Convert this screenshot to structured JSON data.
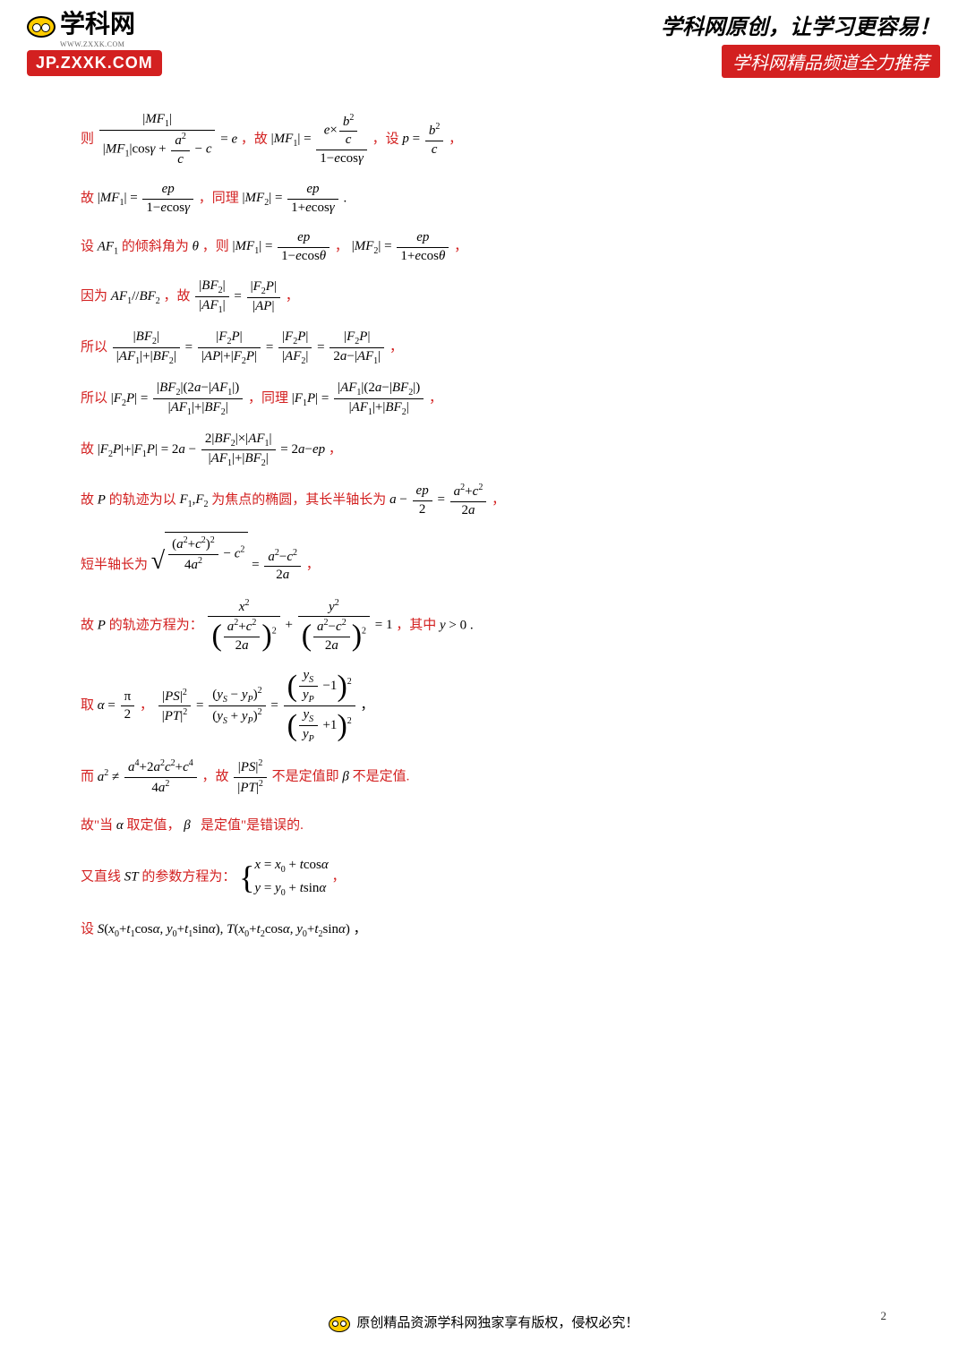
{
  "header": {
    "logo_text": "学科网",
    "logo_url": "WWW.ZXXK.COM",
    "logo_badge": "JP.ZXXK.COM",
    "slogan": "学科网原创，让学习更容易！",
    "promo": "学科网精品频道全力推荐"
  },
  "lines": {
    "l1a": "则",
    "l1b": "，故",
    "l1c": "，设",
    "l1d": "，",
    "l2a": "故",
    "l2b": "，同理",
    "l2c": ".",
    "l3a": "设",
    "l3b": "的倾斜角为",
    "l3c": "，则",
    "l3d": "，",
    "l3e": "，",
    "l4a": "因为",
    "l4b": "，故",
    "l4c": "，",
    "l5a": "所以",
    "l5b": "，",
    "l6a": "所以",
    "l6b": "，同理",
    "l6c": "，",
    "l7a": "故",
    "l7b": "，",
    "l8a": "故",
    "l8b": "的轨迹为以",
    "l8c": "为焦点的椭圆，其长半轴长为",
    "l8d": "，",
    "l9a": "短半轴长为",
    "l9b": "，",
    "l10a": "故",
    "l10b": "的轨迹方程为：",
    "l10c": "，其中",
    "l10d": ".",
    "l11a": "取",
    "l11b": "，",
    "l11c": "，",
    "l12a": "而",
    "l12b": "，故",
    "l12c": "不是定值即",
    "l12d": "不是定值.",
    "l13a": "故\"当",
    "l13b": "取定值，",
    "l13c": "是定值\"是错误的.",
    "l14a": "又直线",
    "l14b": "的参数方程为：",
    "l14c": "，",
    "l15a": "设",
    "l15b": "，"
  },
  "footer": {
    "text": "原创精品资源学科网独家享有版权，侵权必究！",
    "page": "2"
  },
  "colors": {
    "red": "#d32020",
    "black": "#000000",
    "yellow": "#ffcc00"
  }
}
